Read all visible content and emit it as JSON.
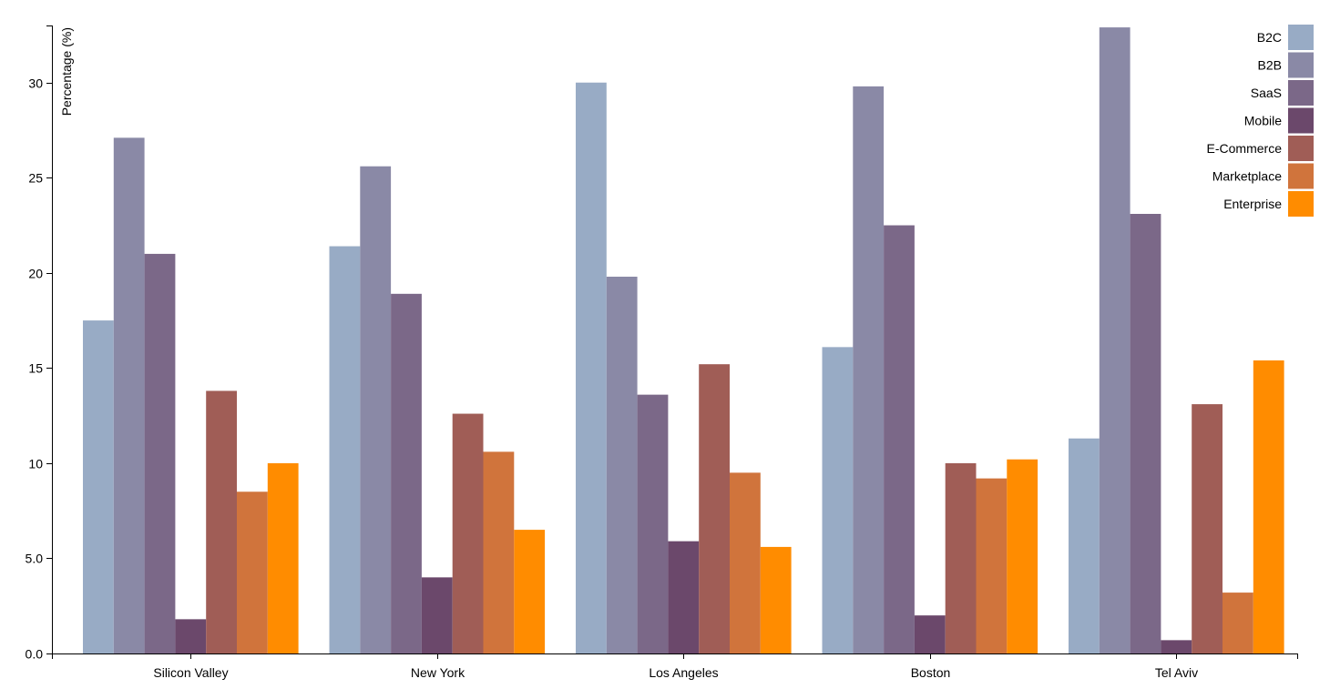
{
  "chart_data": {
    "type": "bar",
    "title": "",
    "xlabel": "",
    "ylabel": "Percentage (%)",
    "ylim": [
      0,
      33
    ],
    "y_ticks": [
      "0.0",
      "5.0",
      "10",
      "15",
      "20",
      "25",
      "30"
    ],
    "grid": false,
    "legend_position": "top-right",
    "categories": [
      "Silicon Valley",
      "New York",
      "Los Angeles",
      "Boston",
      "Tel Aviv"
    ],
    "series": [
      {
        "name": "B2C",
        "color": "#98abc5",
        "values": [
          17.5,
          21.4,
          30.0,
          16.1,
          11.3
        ]
      },
      {
        "name": "B2B",
        "color": "#8a89a6",
        "values": [
          27.1,
          25.6,
          19.8,
          29.8,
          32.9
        ]
      },
      {
        "name": "SaaS",
        "color": "#7b6888",
        "values": [
          21.0,
          18.9,
          13.6,
          22.5,
          23.1
        ]
      },
      {
        "name": "Mobile",
        "color": "#6b486b",
        "values": [
          1.8,
          4.0,
          5.9,
          2.0,
          0.7
        ]
      },
      {
        "name": "E-Commerce",
        "color": "#a05d56",
        "values": [
          13.8,
          12.6,
          15.2,
          10.0,
          13.1
        ]
      },
      {
        "name": "Marketplace",
        "color": "#d0743c",
        "values": [
          8.5,
          10.6,
          9.5,
          9.2,
          3.2
        ]
      },
      {
        "name": "Enterprise",
        "color": "#ff8c00",
        "values": [
          10.0,
          6.5,
          5.6,
          10.2,
          15.4
        ]
      }
    ]
  }
}
